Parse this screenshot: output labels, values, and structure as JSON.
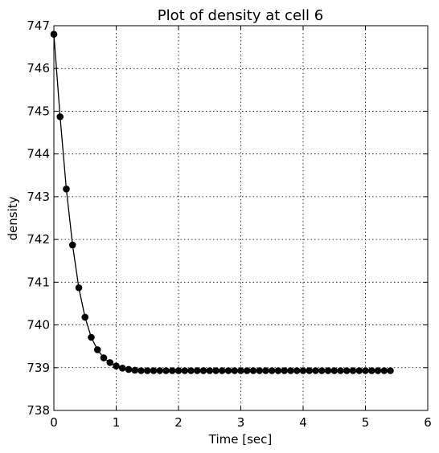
{
  "chart_data": {
    "type": "line",
    "title": "Plot of density at cell 6",
    "xlabel": "Time [sec]",
    "ylabel": "density",
    "xlim": [
      0,
      6
    ],
    "ylim": [
      738,
      747
    ],
    "xticks": [
      0,
      1,
      2,
      3,
      4,
      5,
      6
    ],
    "yticks": [
      738,
      739,
      740,
      741,
      742,
      743,
      744,
      745,
      746,
      747
    ],
    "grid": true,
    "legend": "none",
    "marker": "circle",
    "color": "#000000",
    "series": [
      {
        "x": [
          0.0,
          0.1,
          0.2,
          0.3,
          0.4,
          0.5,
          0.6,
          0.7,
          0.8,
          0.9,
          1.0,
          1.1,
          1.2,
          1.3,
          1.4,
          1.5,
          1.6,
          1.7,
          1.8,
          1.9,
          2.0,
          2.1,
          2.2,
          2.3,
          2.4,
          2.5,
          2.6,
          2.7,
          2.8,
          2.9,
          3.0,
          3.1,
          3.2,
          3.3,
          3.4,
          3.5,
          3.6,
          3.7,
          3.8,
          3.9,
          4.0,
          4.1,
          4.2,
          4.3,
          4.4,
          4.5,
          4.6,
          4.7,
          4.8,
          4.9,
          5.0,
          5.1,
          5.2,
          5.3,
          5.4
        ],
        "y": [
          746.8,
          744.87,
          743.18,
          741.87,
          740.87,
          740.18,
          739.71,
          739.42,
          739.23,
          739.12,
          739.04,
          738.99,
          738.96,
          738.94,
          738.93,
          738.93,
          738.93,
          738.93,
          738.93,
          738.93,
          738.93,
          738.93,
          738.93,
          738.93,
          738.93,
          738.93,
          738.93,
          738.93,
          738.93,
          738.93,
          738.93,
          738.93,
          738.93,
          738.93,
          738.93,
          738.93,
          738.93,
          738.93,
          738.93,
          738.93,
          738.93,
          738.93,
          738.93,
          738.93,
          738.93,
          738.93,
          738.93,
          738.93,
          738.93,
          738.93,
          738.93,
          738.93,
          738.93,
          738.93,
          738.93
        ]
      }
    ]
  }
}
